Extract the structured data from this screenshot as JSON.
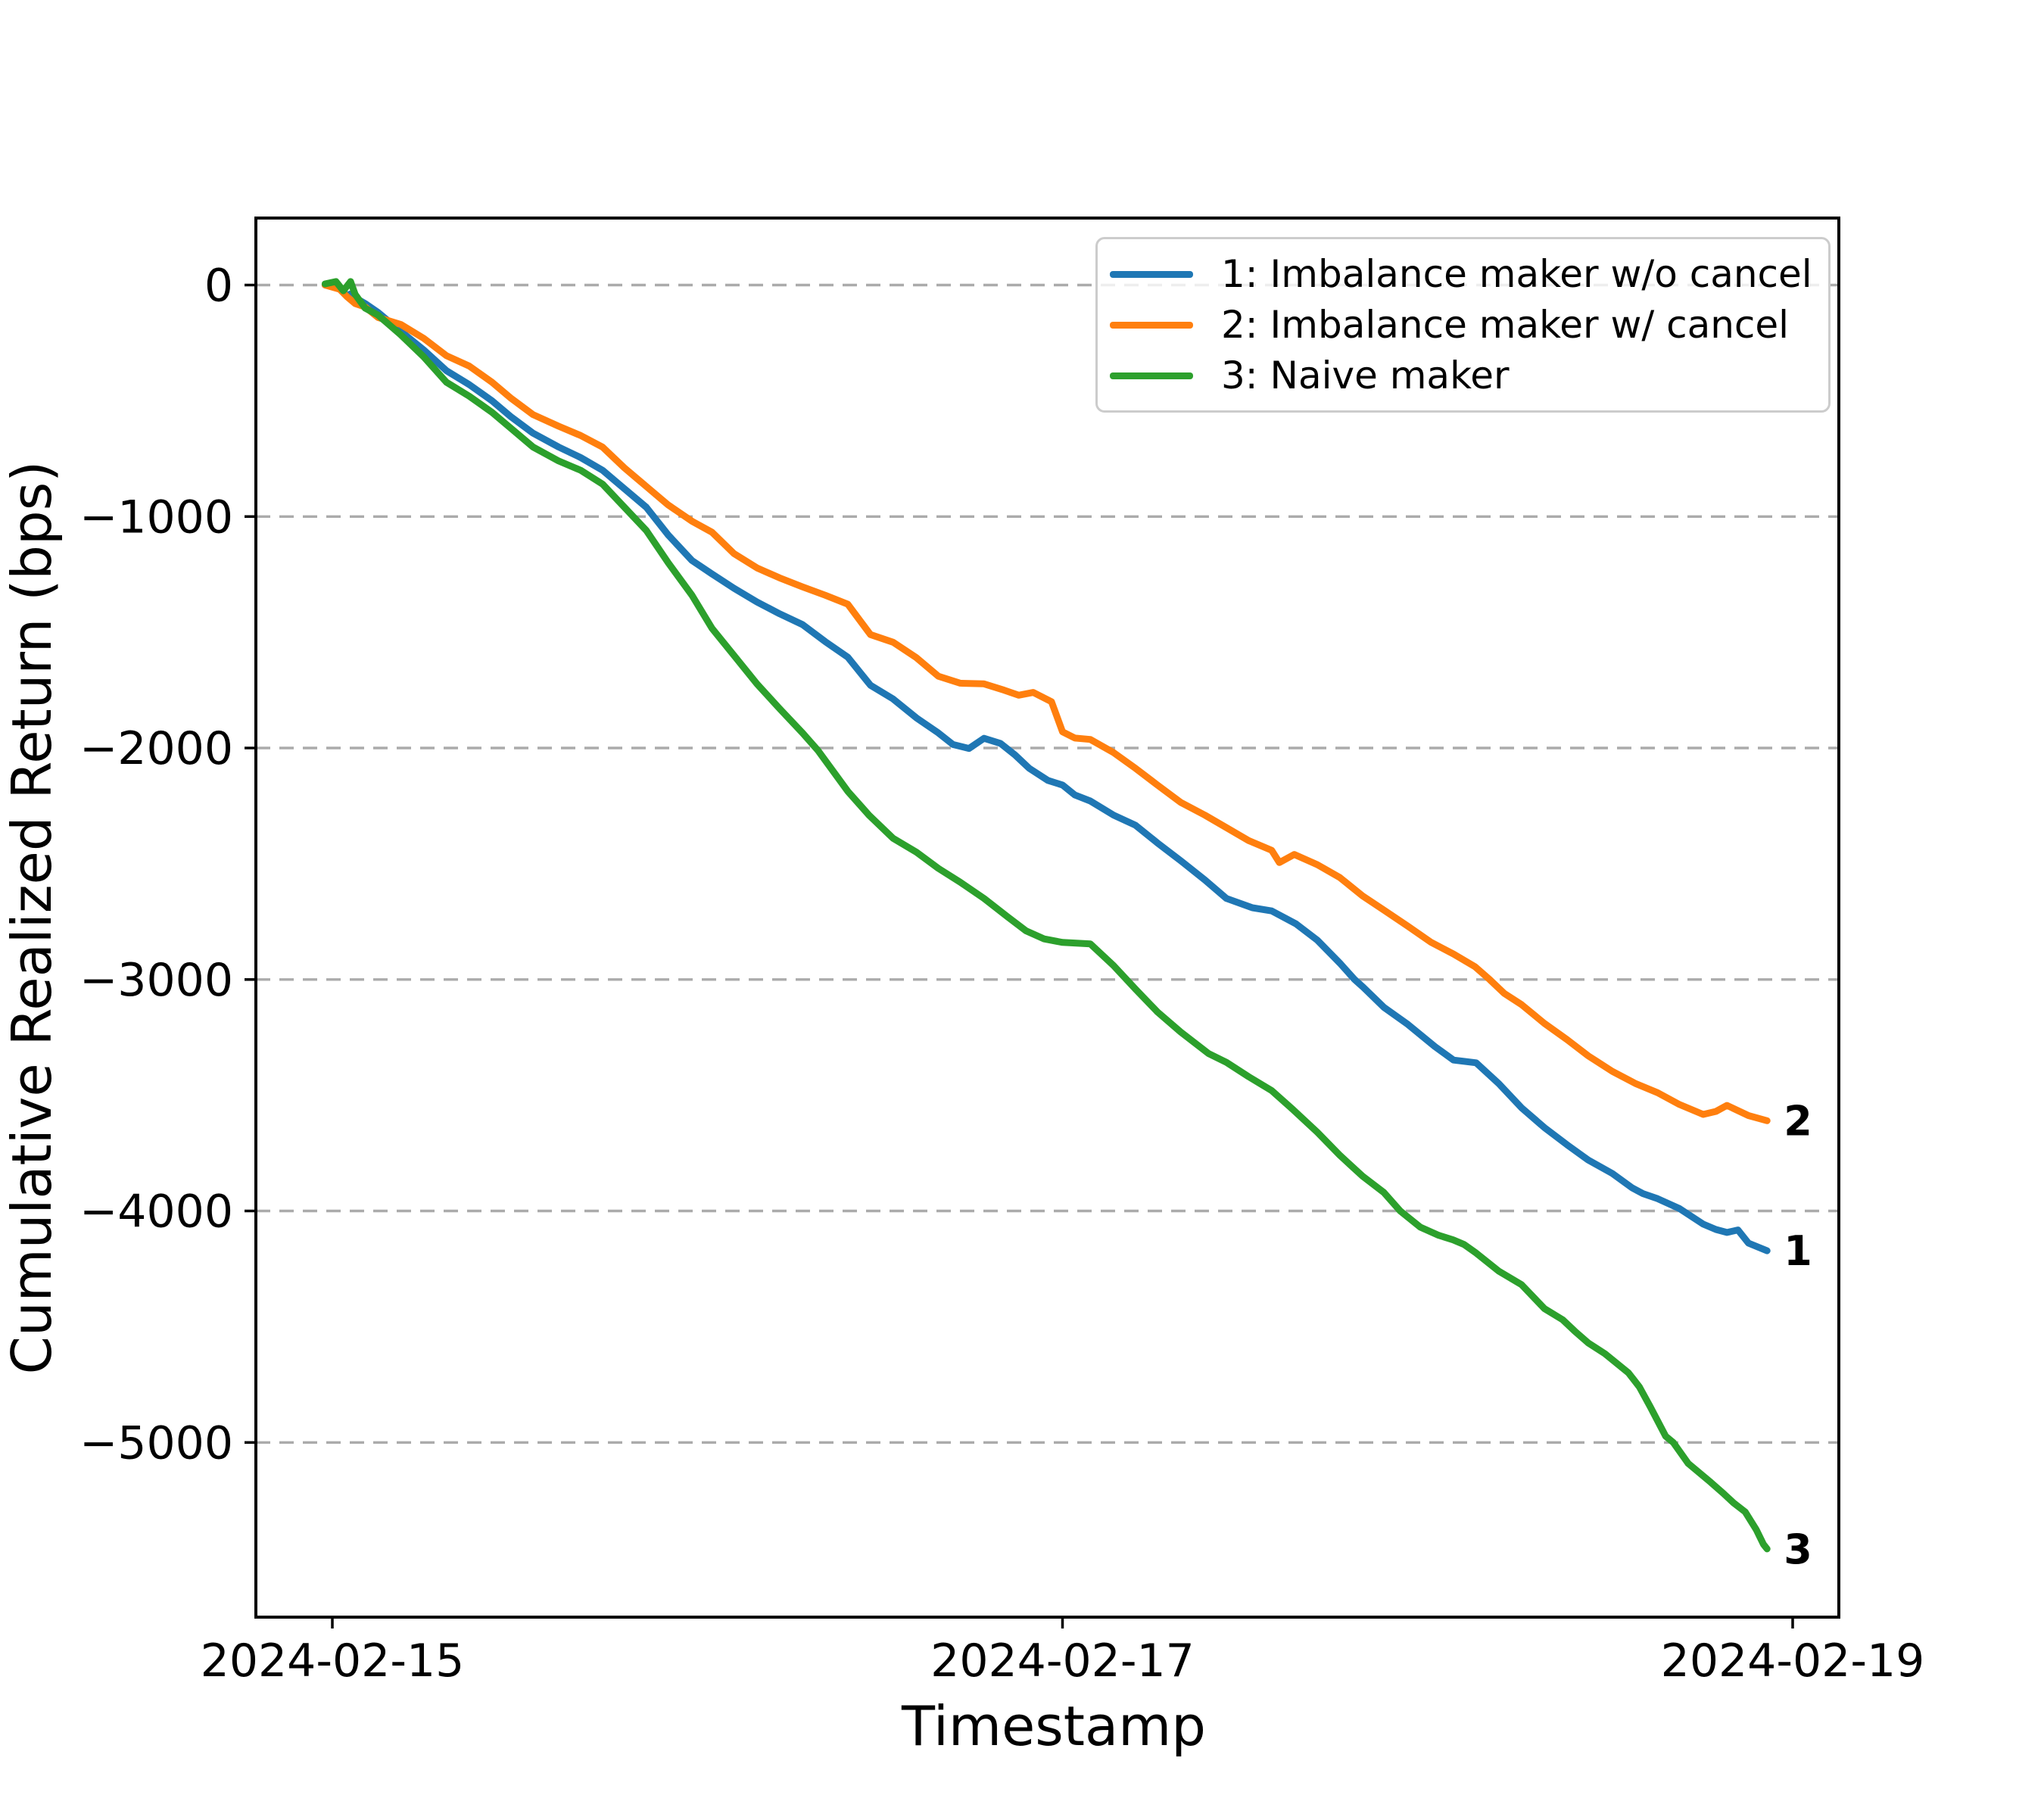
{
  "chart_data": {
    "type": "line",
    "title": "",
    "xlabel": "Timestamp",
    "ylabel": "Cumulative Realized Return (bps)",
    "grid": true,
    "grid_style": "dashed-horizontal",
    "legend_position": "upper right",
    "x_axis": {
      "unit": "days since 2024-02-15 00:00",
      "range": [
        -0.21,
        4.13
      ],
      "ticks": [
        {
          "t": 0,
          "label": "2024-02-15"
        },
        {
          "t": 2,
          "label": "2024-02-17"
        },
        {
          "t": 4,
          "label": "2024-02-19"
        }
      ]
    },
    "y_axis": {
      "range": [
        -5755,
        295
      ],
      "ticks": [
        {
          "v": 0,
          "label": "0"
        },
        {
          "v": -1000,
          "label": "−1000"
        },
        {
          "v": -2000,
          "label": "−2000"
        },
        {
          "v": -3000,
          "label": "−3000"
        },
        {
          "v": -4000,
          "label": "−4000"
        },
        {
          "v": -5000,
          "label": "−5000"
        }
      ]
    },
    "series": [
      {
        "name": "1: Imbalance maker w/o cancel",
        "color": "#1f77b4",
        "end_label": "1",
        "end_value_bps": -4172,
        "points": [
          [
            -0.02,
            0
          ],
          [
            0.02,
            -12
          ],
          [
            0.04,
            -45
          ],
          [
            0.055,
            -35
          ],
          [
            0.0625,
            -55
          ],
          [
            0.09,
            -80
          ],
          [
            0.125,
            -118
          ],
          [
            0.1875,
            -200
          ],
          [
            0.25,
            -280
          ],
          [
            0.3125,
            -370
          ],
          [
            0.375,
            -430
          ],
          [
            0.4375,
            -500
          ],
          [
            0.49,
            -570
          ],
          [
            0.55,
            -640
          ],
          [
            0.62,
            -700
          ],
          [
            0.68,
            -745
          ],
          [
            0.74,
            -800
          ],
          [
            0.8,
            -880
          ],
          [
            0.86,
            -960
          ],
          [
            0.92,
            -1080
          ],
          [
            0.985,
            -1190
          ],
          [
            1.04,
            -1248
          ],
          [
            1.1,
            -1310
          ],
          [
            1.163,
            -1369
          ],
          [
            1.225,
            -1420
          ],
          [
            1.288,
            -1467
          ],
          [
            1.35,
            -1540
          ],
          [
            1.412,
            -1608
          ],
          [
            1.474,
            -1729
          ],
          [
            1.536,
            -1788
          ],
          [
            1.6,
            -1870
          ],
          [
            1.66,
            -1935
          ],
          [
            1.7,
            -1985
          ],
          [
            1.744,
            -2002
          ],
          [
            1.785,
            -1958
          ],
          [
            1.83,
            -1980
          ],
          [
            1.87,
            -2030
          ],
          [
            1.909,
            -2088
          ],
          [
            1.96,
            -2140
          ],
          [
            2.0,
            -2160
          ],
          [
            2.034,
            -2203
          ],
          [
            2.076,
            -2229
          ],
          [
            2.14,
            -2290
          ],
          [
            2.2,
            -2334
          ],
          [
            2.26,
            -2410
          ],
          [
            2.324,
            -2487
          ],
          [
            2.39,
            -2570
          ],
          [
            2.449,
            -2650
          ],
          [
            2.52,
            -2690
          ],
          [
            2.573,
            -2704
          ],
          [
            2.64,
            -2760
          ],
          [
            2.698,
            -2830
          ],
          [
            2.76,
            -2930
          ],
          [
            2.8,
            -3000
          ],
          [
            2.822,
            -3031
          ],
          [
            2.88,
            -3120
          ],
          [
            2.946,
            -3194
          ],
          [
            3.02,
            -3290
          ],
          [
            3.071,
            -3348
          ],
          [
            3.133,
            -3360
          ],
          [
            3.195,
            -3450
          ],
          [
            3.257,
            -3554
          ],
          [
            3.32,
            -3640
          ],
          [
            3.382,
            -3714
          ],
          [
            3.44,
            -3780
          ],
          [
            3.506,
            -3838
          ],
          [
            3.56,
            -3900
          ],
          [
            3.59,
            -3925
          ],
          [
            3.63,
            -3947
          ],
          [
            3.69,
            -3990
          ],
          [
            3.755,
            -4057
          ],
          [
            3.79,
            -4080
          ],
          [
            3.82,
            -4093
          ],
          [
            3.85,
            -4082
          ],
          [
            3.879,
            -4139
          ],
          [
            3.93,
            -4172
          ]
        ]
      },
      {
        "name": "2: Imbalance maker w/ cancel",
        "color": "#ff7f0e",
        "end_label": "2",
        "end_value_bps": -3610,
        "points": [
          [
            -0.02,
            0
          ],
          [
            0.02,
            -18
          ],
          [
            0.04,
            -50
          ],
          [
            0.0625,
            -80
          ],
          [
            0.09,
            -95
          ],
          [
            0.125,
            -140
          ],
          [
            0.1875,
            -170
          ],
          [
            0.25,
            -230
          ],
          [
            0.3125,
            -305
          ],
          [
            0.375,
            -350
          ],
          [
            0.4375,
            -420
          ],
          [
            0.49,
            -490
          ],
          [
            0.55,
            -560
          ],
          [
            0.62,
            -610
          ],
          [
            0.68,
            -650
          ],
          [
            0.74,
            -700
          ],
          [
            0.8,
            -790
          ],
          [
            0.86,
            -870
          ],
          [
            0.92,
            -950
          ],
          [
            0.985,
            -1020
          ],
          [
            1.04,
            -1068
          ],
          [
            1.1,
            -1160
          ],
          [
            1.163,
            -1222
          ],
          [
            1.225,
            -1265
          ],
          [
            1.288,
            -1304
          ],
          [
            1.35,
            -1340
          ],
          [
            1.412,
            -1379
          ],
          [
            1.474,
            -1510
          ],
          [
            1.536,
            -1543
          ],
          [
            1.6,
            -1610
          ],
          [
            1.66,
            -1690
          ],
          [
            1.72,
            -1720
          ],
          [
            1.785,
            -1723
          ],
          [
            1.84,
            -1750
          ],
          [
            1.88,
            -1772
          ],
          [
            1.92,
            -1760
          ],
          [
            1.97,
            -1800
          ],
          [
            2.0,
            -1930
          ],
          [
            2.034,
            -1957
          ],
          [
            2.076,
            -1963
          ],
          [
            2.14,
            -2020
          ],
          [
            2.2,
            -2088
          ],
          [
            2.26,
            -2160
          ],
          [
            2.324,
            -2235
          ],
          [
            2.39,
            -2290
          ],
          [
            2.449,
            -2344
          ],
          [
            2.51,
            -2400
          ],
          [
            2.573,
            -2442
          ],
          [
            2.594,
            -2495
          ],
          [
            2.635,
            -2460
          ],
          [
            2.698,
            -2504
          ],
          [
            2.76,
            -2560
          ],
          [
            2.822,
            -2639
          ],
          [
            2.88,
            -2700
          ],
          [
            2.946,
            -2770
          ],
          [
            3.01,
            -2840
          ],
          [
            3.071,
            -2890
          ],
          [
            3.13,
            -2945
          ],
          [
            3.17,
            -3000
          ],
          [
            3.21,
            -3060
          ],
          [
            3.257,
            -3108
          ],
          [
            3.32,
            -3190
          ],
          [
            3.382,
            -3260
          ],
          [
            3.44,
            -3330
          ],
          [
            3.506,
            -3397
          ],
          [
            3.57,
            -3450
          ],
          [
            3.63,
            -3489
          ],
          [
            3.69,
            -3540
          ],
          [
            3.755,
            -3583
          ],
          [
            3.79,
            -3570
          ],
          [
            3.82,
            -3544
          ],
          [
            3.879,
            -3588
          ],
          [
            3.93,
            -3610
          ]
        ]
      },
      {
        "name": "3: Naive maker",
        "color": "#2ca02c",
        "end_label": "3",
        "end_value_bps": -5460,
        "points": [
          [
            -0.02,
            5
          ],
          [
            0.01,
            15
          ],
          [
            0.03,
            -25
          ],
          [
            0.05,
            15
          ],
          [
            0.0625,
            -40
          ],
          [
            0.09,
            -100
          ],
          [
            0.125,
            -130
          ],
          [
            0.1875,
            -215
          ],
          [
            0.25,
            -310
          ],
          [
            0.3125,
            -420
          ],
          [
            0.375,
            -480
          ],
          [
            0.4375,
            -550
          ],
          [
            0.49,
            -620
          ],
          [
            0.55,
            -700
          ],
          [
            0.62,
            -760
          ],
          [
            0.68,
            -800
          ],
          [
            0.74,
            -860
          ],
          [
            0.8,
            -960
          ],
          [
            0.86,
            -1060
          ],
          [
            0.92,
            -1200
          ],
          [
            0.985,
            -1340
          ],
          [
            1.04,
            -1483
          ],
          [
            1.1,
            -1600
          ],
          [
            1.163,
            -1723
          ],
          [
            1.225,
            -1830
          ],
          [
            1.288,
            -1935
          ],
          [
            1.33,
            -2010
          ],
          [
            1.412,
            -2187
          ],
          [
            1.47,
            -2290
          ],
          [
            1.536,
            -2390
          ],
          [
            1.6,
            -2450
          ],
          [
            1.66,
            -2520
          ],
          [
            1.72,
            -2580
          ],
          [
            1.785,
            -2650
          ],
          [
            1.85,
            -2730
          ],
          [
            1.9,
            -2790
          ],
          [
            1.95,
            -2825
          ],
          [
            2.0,
            -2840
          ],
          [
            2.076,
            -2846
          ],
          [
            2.14,
            -2940
          ],
          [
            2.2,
            -3042
          ],
          [
            2.26,
            -3140
          ],
          [
            2.324,
            -3227
          ],
          [
            2.4,
            -3320
          ],
          [
            2.449,
            -3358
          ],
          [
            2.51,
            -3420
          ],
          [
            2.573,
            -3480
          ],
          [
            2.63,
            -3560
          ],
          [
            2.698,
            -3660
          ],
          [
            2.76,
            -3760
          ],
          [
            2.822,
            -3850
          ],
          [
            2.88,
            -3920
          ],
          [
            2.925,
            -4000
          ],
          [
            2.98,
            -4070
          ],
          [
            3.03,
            -4105
          ],
          [
            3.07,
            -4125
          ],
          [
            3.1,
            -4145
          ],
          [
            3.133,
            -4182
          ],
          [
            3.195,
            -4260
          ],
          [
            3.257,
            -4318
          ],
          [
            3.32,
            -4422
          ],
          [
            3.37,
            -4470
          ],
          [
            3.403,
            -4519
          ],
          [
            3.44,
            -4570
          ],
          [
            3.486,
            -4617
          ],
          [
            3.55,
            -4699
          ],
          [
            3.58,
            -4760
          ],
          [
            3.61,
            -4846
          ],
          [
            3.652,
            -4973
          ],
          [
            3.673,
            -5000
          ],
          [
            3.714,
            -5091
          ],
          [
            3.776,
            -5173
          ],
          [
            3.81,
            -5220
          ],
          [
            3.838,
            -5261
          ],
          [
            3.87,
            -5300
          ],
          [
            3.9,
            -5376
          ],
          [
            3.92,
            -5440
          ],
          [
            3.93,
            -5460
          ]
        ]
      }
    ]
  },
  "colors": {
    "background": "#ffffff",
    "grid": "#ababab",
    "spine": "#000000",
    "text": "#000000"
  }
}
